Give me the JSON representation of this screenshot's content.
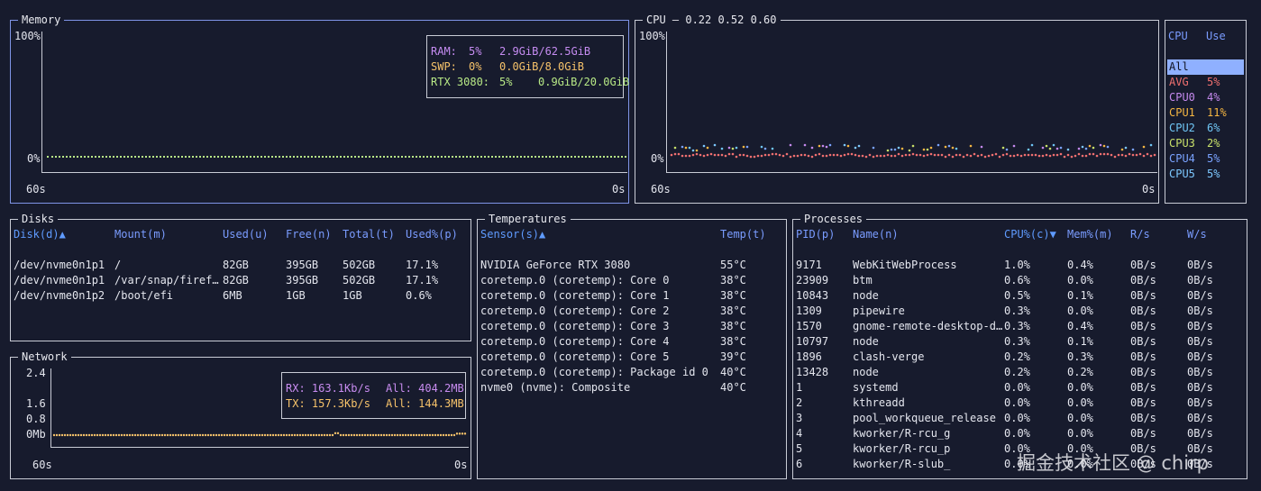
{
  "memory": {
    "title": "Memory",
    "y_max_label": "100%",
    "y_min_label": "0%",
    "x_left_label": "60s",
    "x_right_label": "0s",
    "legend": {
      "ram_name": "RAM:",
      "ram_pct": "5%",
      "ram_usage": "2.9GiB/62.5GiB",
      "swp_name": "SWP:",
      "swp_pct": "0%",
      "swp_usage": "0.0GiB/8.0GiB",
      "gpu_name": "RTX 3080:",
      "gpu_pct": "5%",
      "gpu_usage": "0.9GiB/20.0GiB"
    },
    "colors": {
      "ram": "#c68cf2",
      "swp": "#f6c26a",
      "gpu": "#b8e986"
    }
  },
  "cpu": {
    "title": "CPU — 0.22 0.52 0.60",
    "y_max_label": "100%",
    "y_min_label": "0%",
    "x_left_label": "60s",
    "x_right_label": "0s",
    "list_headers": {
      "cpu": "CPU",
      "use": "Use"
    },
    "rows": [
      {
        "name": "All",
        "use": "",
        "selected": true,
        "color": "#8fb0ff"
      },
      {
        "name": "AVG",
        "use": "5%",
        "color": "#f07070"
      },
      {
        "name": "CPU0",
        "use": "4%",
        "color": "#c58aee"
      },
      {
        "name": "CPU1",
        "use": "11%",
        "color": "#f5b642"
      },
      {
        "name": "CPU2",
        "use": "6%",
        "color": "#6fc6f5"
      },
      {
        "name": "CPU3",
        "use": "2%",
        "color": "#c8e06a"
      },
      {
        "name": "CPU4",
        "use": "5%",
        "color": "#7aa3ff"
      },
      {
        "name": "CPU5",
        "use": "5%",
        "color": "#7dc8ff"
      }
    ]
  },
  "disks": {
    "title": "Disks",
    "headers": [
      "Disk(d)▲",
      "Mount(m)",
      "Used(u)",
      "Free(n)",
      "Total(t)",
      "Used%(p)"
    ],
    "rows": [
      [
        "/dev/nvme0n1p1",
        "/",
        "82GB",
        "395GB",
        "502GB",
        "17.1%"
      ],
      [
        "/dev/nvme0n1p1",
        "/var/snap/firef…",
        "82GB",
        "395GB",
        "502GB",
        "17.1%"
      ],
      [
        "/dev/nvme0n1p2",
        "/boot/efi",
        "6MB",
        "1GB",
        "1GB",
        "0.6%"
      ]
    ]
  },
  "temperatures": {
    "title": "Temperatures",
    "headers": [
      "Sensor(s)▲",
      "Temp(t)"
    ],
    "rows": [
      [
        "NVIDIA GeForce RTX 3080",
        "55°C"
      ],
      [
        "coretemp.0 (coretemp): Core 0",
        "38°C"
      ],
      [
        "coretemp.0 (coretemp): Core 1",
        "38°C"
      ],
      [
        "coretemp.0 (coretemp): Core 2",
        "38°C"
      ],
      [
        "coretemp.0 (coretemp): Core 3",
        "38°C"
      ],
      [
        "coretemp.0 (coretemp): Core 4",
        "38°C"
      ],
      [
        "coretemp.0 (coretemp): Core 5",
        "39°C"
      ],
      [
        "coretemp.0 (coretemp): Package id 0",
        "40°C"
      ],
      [
        "nvme0 (nvme): Composite",
        "40°C"
      ]
    ]
  },
  "processes": {
    "title": "Processes",
    "headers": [
      "PID(p)",
      "Name(n)",
      "CPU%(c)▼",
      "Mem%(m)",
      "R/s",
      "W/s"
    ],
    "rows": [
      [
        "9171",
        "WebKitWebProcess",
        "1.0%",
        "0.4%",
        "0B/s",
        "0B/s"
      ],
      [
        "23909",
        "btm",
        "0.6%",
        "0.0%",
        "0B/s",
        "0B/s"
      ],
      [
        "10843",
        "node",
        "0.5%",
        "0.1%",
        "0B/s",
        "0B/s"
      ],
      [
        "1309",
        "pipewire",
        "0.3%",
        "0.0%",
        "0B/s",
        "0B/s"
      ],
      [
        "1570",
        "gnome-remote-desktop-d…",
        "0.3%",
        "0.4%",
        "0B/s",
        "0B/s"
      ],
      [
        "10797",
        "node",
        "0.3%",
        "0.1%",
        "0B/s",
        "0B/s"
      ],
      [
        "1896",
        "clash-verge",
        "0.2%",
        "0.3%",
        "0B/s",
        "0B/s"
      ],
      [
        "13428",
        "node",
        "0.2%",
        "0.2%",
        "0B/s",
        "0B/s"
      ],
      [
        "1",
        "systemd",
        "0.0%",
        "0.0%",
        "0B/s",
        "0B/s"
      ],
      [
        "2",
        "kthreadd",
        "0.0%",
        "0.0%",
        "0B/s",
        "0B/s"
      ],
      [
        "3",
        "pool_workqueue_release",
        "0.0%",
        "0.0%",
        "0B/s",
        "0B/s"
      ],
      [
        "4",
        "kworker/R-rcu_g",
        "0.0%",
        "0.0%",
        "0B/s",
        "0B/s"
      ],
      [
        "5",
        "kworker/R-rcu_p",
        "0.0%",
        "0.0%",
        "0B/s",
        "0B/s"
      ],
      [
        "6",
        "kworker/R-slub_",
        "0.0%",
        "0.0%",
        "0B/s",
        "0B/s"
      ]
    ]
  },
  "network": {
    "title": "Network",
    "y_labels": [
      "2.4",
      "1.6",
      "0.8",
      "0Mb"
    ],
    "x_left_label": "60s",
    "x_right_label": "0s",
    "legend": {
      "rx_label": "RX: 163.1Kb/s",
      "rx_all": "All: 404.2MB",
      "tx_label": "TX: 157.3Kb/s",
      "tx_all": "All: 144.3MB"
    },
    "colors": {
      "rx": "#c88cf0",
      "tx": "#f6c26a"
    }
  },
  "watermark": "掘金技术社区 @ chirp"
}
